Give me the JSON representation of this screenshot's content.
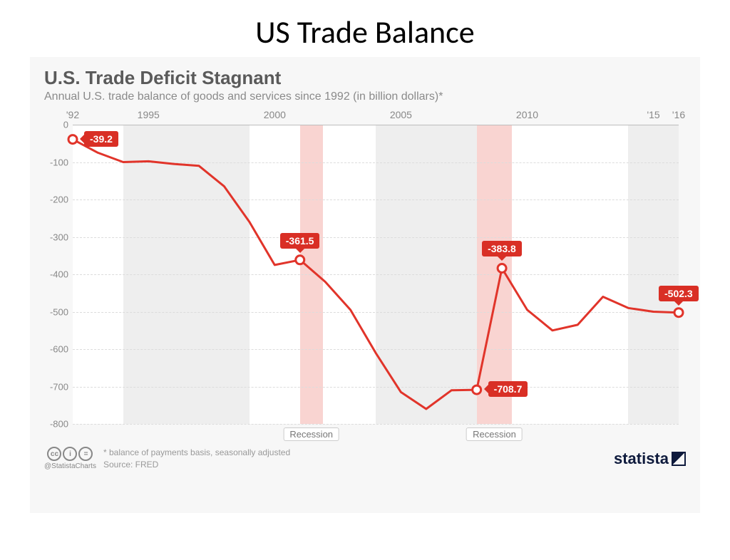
{
  "slide": {
    "title": "US Trade Balance"
  },
  "chart": {
    "type": "line",
    "title": "U.S. Trade Deficit Stagnant",
    "subtitle": "Annual U.S. trade balance of goods and services since 1992 (in billion dollars)*",
    "background_color": "#f7f7f7",
    "plot_background": "#ffffff",
    "grid_color": "#dcdcdc",
    "line_color": "#e1342a",
    "line_width": 3,
    "marker_stroke": "#e1342a",
    "marker_fill": "#ffffff",
    "marker_radius": 6,
    "callout_bg": "#d92f25",
    "callout_text_color": "#ffffff",
    "x_years": [
      1992,
      1993,
      1994,
      1995,
      1996,
      1997,
      1998,
      1999,
      2000,
      2001,
      2002,
      2003,
      2004,
      2005,
      2006,
      2007,
      2008,
      2009,
      2010,
      2011,
      2012,
      2013,
      2014,
      2015,
      2016
    ],
    "y_values": [
      -39.2,
      -75,
      -100,
      -98,
      -105,
      -110,
      -165,
      -260,
      -375,
      -361.5,
      -420,
      -495,
      -610,
      -715,
      -760,
      -710,
      -708.7,
      -383.8,
      -495,
      -550,
      -535,
      -460,
      -490,
      -500,
      -502.3
    ],
    "x_ticks": [
      {
        "year": 1992,
        "label": "'92"
      },
      {
        "year": 1995,
        "label": "1995"
      },
      {
        "year": 2000,
        "label": "2000"
      },
      {
        "year": 2005,
        "label": "2005"
      },
      {
        "year": 2010,
        "label": "2010"
      },
      {
        "year": 2015,
        "label": "'15"
      },
      {
        "year": 2016,
        "label": "'16"
      }
    ],
    "xlim": [
      1992,
      2016
    ],
    "ylim": [
      -800,
      0
    ],
    "ytick_step": 100,
    "shaded_bands": [
      {
        "from": 1994,
        "to": 1999,
        "color": "#eeeeee"
      },
      {
        "from": 2001,
        "to": 2001.9,
        "color": "#f9d4d1",
        "label": "Recession"
      },
      {
        "from": 2004,
        "to": 2008,
        "color": "#eeeeee"
      },
      {
        "from": 2008,
        "to": 2009.4,
        "color": "#f9d4d1",
        "label": "Recession"
      },
      {
        "from": 2014,
        "to": 2016,
        "color": "#eeeeee"
      }
    ],
    "callouts": [
      {
        "year": 1992,
        "value": -39.2,
        "label": "-39.2",
        "placement": "right"
      },
      {
        "year": 2001,
        "value": -361.5,
        "label": "-361.5",
        "placement": "above"
      },
      {
        "year": 2008,
        "value": -708.7,
        "label": "-708.7",
        "placement": "right"
      },
      {
        "year": 2009,
        "value": -383.8,
        "label": "-383.8",
        "placement": "above"
      },
      {
        "year": 2016,
        "value": -502.3,
        "label": "-502.3",
        "placement": "above"
      }
    ],
    "recession_label": "Recession"
  },
  "footer": {
    "footnote": "* balance of payments basis, seasonally adjusted",
    "source": "Source: FRED",
    "cc_handle": "@StatistaCharts",
    "cc_icons": [
      "cc",
      "by",
      "nd"
    ],
    "brand": "statista"
  }
}
